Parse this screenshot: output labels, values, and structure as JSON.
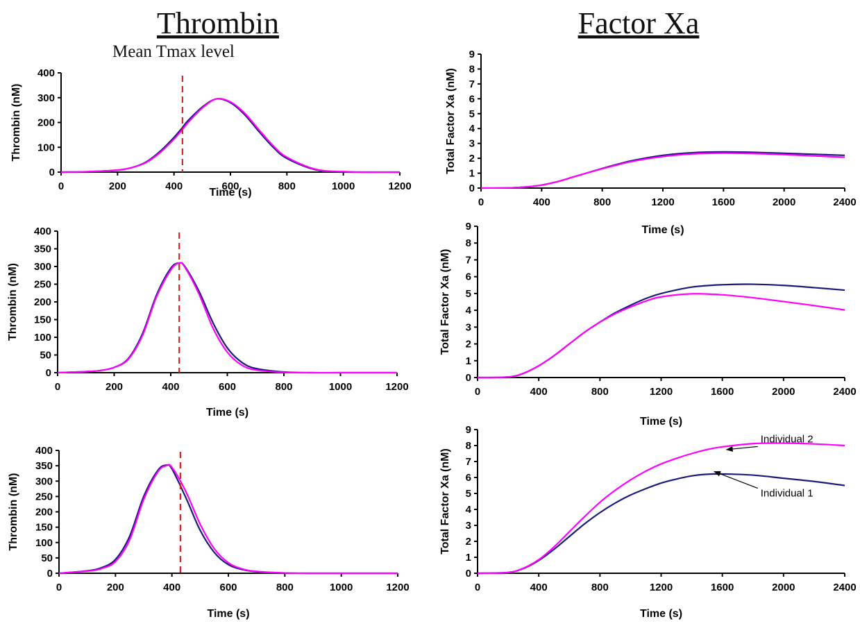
{
  "titles": {
    "left": "Thrombin",
    "right": "Factor Xa"
  },
  "annotation_tmax": "Mean Tmax level",
  "colors": {
    "individual_1": "#1a1a7a",
    "individual_2": "#ff00ff",
    "tmax_line": "#e02020"
  },
  "chart_data": [
    {
      "id": "thrombin-1",
      "type": "line",
      "xlabel": "Time (s)",
      "ylabel": "Thrombin (nM)",
      "xlim": [
        0,
        1200
      ],
      "ylim": [
        0,
        400
      ],
      "xticks": [
        0,
        200,
        400,
        600,
        800,
        1000,
        1200
      ],
      "yticks": [
        0,
        100,
        200,
        300,
        400
      ],
      "tmax_x": 430,
      "series": [
        {
          "x": [
            0,
            100,
            200,
            250,
            300,
            350,
            400,
            430,
            450,
            500,
            550,
            600,
            650,
            700,
            750,
            800,
            900,
            1000,
            1100,
            1200
          ],
          "y": [
            0,
            2,
            8,
            18,
            40,
            83,
            140,
            180,
            208,
            262,
            295,
            280,
            232,
            165,
            102,
            55,
            10,
            1,
            0,
            0
          ]
        },
        {
          "x": [
            0,
            100,
            200,
            250,
            300,
            350,
            400,
            430,
            450,
            500,
            550,
            600,
            650,
            700,
            750,
            800,
            900,
            1000,
            1100,
            1200
          ],
          "y": [
            0,
            2,
            8,
            18,
            38,
            78,
            133,
            172,
            200,
            258,
            295,
            283,
            238,
            172,
            108,
            60,
            12,
            2,
            0,
            0
          ]
        }
      ]
    },
    {
      "id": "thrombin-2",
      "type": "line",
      "xlabel": "Time (s)",
      "ylabel": "Thrombin (nM)",
      "xlim": [
        0,
        1200
      ],
      "ylim": [
        0,
        400
      ],
      "xticks": [
        0,
        200,
        400,
        600,
        800,
        1000,
        1200
      ],
      "yticks": [
        0,
        50,
        100,
        150,
        200,
        250,
        300,
        350,
        400
      ],
      "tmax_x": 430,
      "series": [
        {
          "x": [
            0,
            100,
            150,
            200,
            250,
            300,
            350,
            400,
            430,
            450,
            500,
            550,
            600,
            650,
            700,
            800,
            900,
            1000,
            1200
          ],
          "y": [
            0,
            3,
            6,
            15,
            40,
            110,
            220,
            295,
            310,
            300,
            230,
            140,
            70,
            30,
            12,
            2,
            0,
            0,
            0
          ]
        },
        {
          "x": [
            0,
            100,
            150,
            200,
            250,
            300,
            350,
            400,
            430,
            450,
            500,
            550,
            600,
            650,
            700,
            800,
            900,
            1000,
            1200
          ],
          "y": [
            0,
            3,
            6,
            15,
            38,
            105,
            215,
            290,
            310,
            298,
            222,
            125,
            58,
            22,
            8,
            1,
            0,
            0,
            0
          ]
        }
      ]
    },
    {
      "id": "thrombin-3",
      "type": "line",
      "xlabel": "Time (s)",
      "ylabel": "Thrombin (nM)",
      "xlim": [
        0,
        1200
      ],
      "ylim": [
        0,
        400
      ],
      "xticks": [
        0,
        200,
        400,
        600,
        800,
        1000,
        1200
      ],
      "yticks": [
        0,
        50,
        100,
        150,
        200,
        250,
        300,
        350,
        400
      ],
      "tmax_x": 430,
      "series": [
        {
          "x": [
            0,
            100,
            150,
            200,
            250,
            300,
            350,
            380,
            400,
            450,
            500,
            550,
            600,
            650,
            700,
            800,
            900,
            1000,
            1200
          ],
          "y": [
            0,
            8,
            18,
            45,
            120,
            250,
            335,
            352,
            340,
            245,
            140,
            68,
            28,
            12,
            5,
            1,
            0,
            0,
            0
          ]
        },
        {
          "x": [
            0,
            100,
            150,
            200,
            250,
            300,
            350,
            380,
            400,
            450,
            500,
            550,
            600,
            650,
            700,
            800,
            900,
            1000,
            1200
          ],
          "y": [
            0,
            7,
            15,
            38,
            108,
            240,
            330,
            350,
            345,
            265,
            160,
            80,
            34,
            14,
            6,
            1,
            0,
            0,
            0
          ]
        }
      ]
    },
    {
      "id": "factor-xa-1",
      "type": "line",
      "xlabel": "Time (s)",
      "ylabel": "Total Factor Xa (nM)",
      "xlim": [
        0,
        2400
      ],
      "ylim": [
        0,
        9
      ],
      "xticks": [
        0,
        400,
        800,
        1200,
        1600,
        2000,
        2400
      ],
      "yticks": [
        0,
        1,
        2,
        3,
        4,
        5,
        6,
        7,
        8,
        9
      ],
      "series": [
        {
          "x": [
            0,
            200,
            300,
            400,
            500,
            600,
            700,
            800,
            900,
            1000,
            1200,
            1400,
            1600,
            1800,
            2000,
            2200,
            2400
          ],
          "y": [
            0,
            0.02,
            0.08,
            0.2,
            0.42,
            0.72,
            1.02,
            1.32,
            1.6,
            1.85,
            2.2,
            2.38,
            2.43,
            2.4,
            2.34,
            2.27,
            2.2
          ]
        },
        {
          "x": [
            0,
            200,
            300,
            400,
            500,
            600,
            700,
            800,
            900,
            1000,
            1200,
            1400,
            1600,
            1800,
            2000,
            2200,
            2400
          ],
          "y": [
            0,
            0.02,
            0.08,
            0.2,
            0.42,
            0.72,
            1.02,
            1.3,
            1.56,
            1.8,
            2.12,
            2.3,
            2.35,
            2.32,
            2.25,
            2.16,
            2.07
          ]
        }
      ]
    },
    {
      "id": "factor-xa-2",
      "type": "line",
      "xlabel": "Time (s)",
      "ylabel": "Total Factor Xa (nM)",
      "xlim": [
        0,
        2400
      ],
      "ylim": [
        0,
        9
      ],
      "xticks": [
        0,
        400,
        800,
        1200,
        1600,
        2000,
        2400
      ],
      "yticks": [
        0,
        1,
        2,
        3,
        4,
        5,
        6,
        7,
        8,
        9
      ],
      "series": [
        {
          "x": [
            0,
            200,
            300,
            400,
            500,
            600,
            700,
            800,
            900,
            1000,
            1100,
            1200,
            1400,
            1600,
            1800,
            2000,
            2200,
            2400
          ],
          "y": [
            0,
            0.03,
            0.25,
            0.7,
            1.3,
            2.0,
            2.7,
            3.3,
            3.85,
            4.3,
            4.7,
            5.0,
            5.38,
            5.52,
            5.55,
            5.48,
            5.35,
            5.2
          ]
        },
        {
          "x": [
            0,
            200,
            300,
            400,
            500,
            600,
            700,
            800,
            900,
            1000,
            1100,
            1200,
            1400,
            1600,
            1800,
            2000,
            2200,
            2400
          ],
          "y": [
            0,
            0.03,
            0.25,
            0.7,
            1.3,
            2.0,
            2.7,
            3.3,
            3.8,
            4.2,
            4.55,
            4.8,
            4.98,
            4.92,
            4.75,
            4.52,
            4.28,
            4.02
          ]
        }
      ]
    },
    {
      "id": "factor-xa-3",
      "type": "line",
      "xlabel": "Time (s)",
      "ylabel": "Total Factor Xa (nM)",
      "xlim": [
        0,
        2400
      ],
      "ylim": [
        0,
        9
      ],
      "xticks": [
        0,
        400,
        800,
        1200,
        1600,
        2000,
        2400
      ],
      "yticks": [
        0,
        1,
        2,
        3,
        4,
        5,
        6,
        7,
        8,
        9
      ],
      "annotations": [
        {
          "text": "Individual 2",
          "x": 1850,
          "y": 8.2
        },
        {
          "text": "Individual 1",
          "x": 1850,
          "y": 4.8
        }
      ],
      "series": [
        {
          "x": [
            0,
            200,
            300,
            400,
            500,
            600,
            700,
            800,
            900,
            1000,
            1100,
            1200,
            1300,
            1400,
            1500,
            1600,
            1800,
            2000,
            2200,
            2400
          ],
          "y": [
            0,
            0.05,
            0.3,
            0.8,
            1.5,
            2.3,
            3.1,
            3.8,
            4.4,
            4.9,
            5.3,
            5.65,
            5.9,
            6.1,
            6.2,
            6.22,
            6.15,
            5.95,
            5.75,
            5.5
          ]
        },
        {
          "x": [
            0,
            200,
            300,
            400,
            500,
            600,
            700,
            800,
            900,
            1000,
            1100,
            1200,
            1300,
            1400,
            1500,
            1600,
            1800,
            2000,
            2200,
            2400
          ],
          "y": [
            0,
            0.05,
            0.32,
            0.85,
            1.65,
            2.6,
            3.55,
            4.45,
            5.2,
            5.85,
            6.4,
            6.85,
            7.2,
            7.5,
            7.75,
            7.92,
            8.12,
            8.15,
            8.1,
            8.0
          ]
        }
      ]
    }
  ]
}
